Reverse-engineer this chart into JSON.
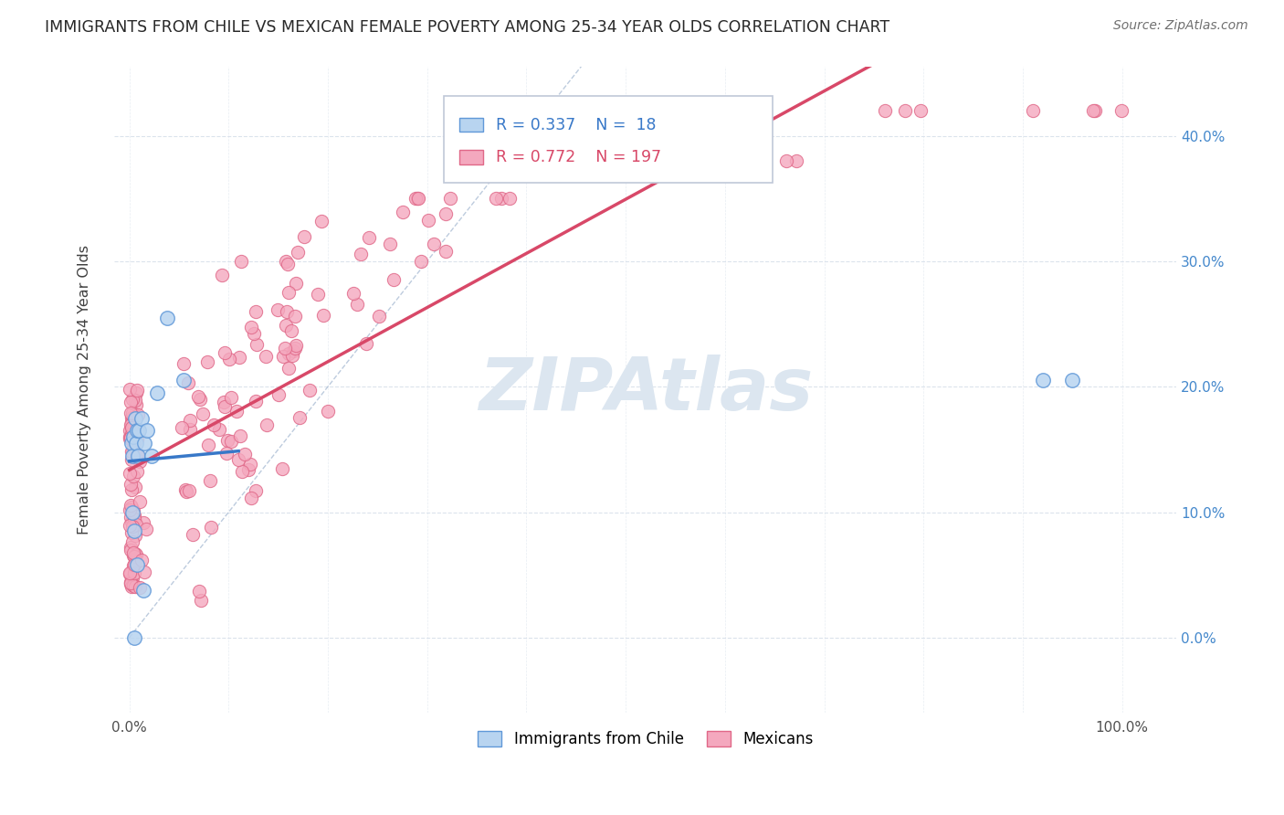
{
  "title": "IMMIGRANTS FROM CHILE VS MEXICAN FEMALE POVERTY AMONG 25-34 YEAR OLDS CORRELATION CHART",
  "source": "Source: ZipAtlas.com",
  "ylabel": "Female Poverty Among 25-34 Year Olds",
  "legend_blue_label": "Immigrants from Chile",
  "legend_pink_label": "Mexicans",
  "r_blue": "0.337",
  "n_blue": "18",
  "r_pink": "0.772",
  "n_pink": "197",
  "blue_face_color": "#b8d4f0",
  "blue_edge_color": "#6098d8",
  "pink_face_color": "#f4a8be",
  "pink_edge_color": "#e06888",
  "blue_line_color": "#3878c8",
  "pink_line_color": "#d84868",
  "diag_line_color": "#9ab0cc",
  "grid_color": "#d8e0ea",
  "background_color": "#ffffff",
  "watermark": "ZIPAtlas",
  "watermark_color": "#dce6f0",
  "figsize": [
    14.06,
    8.92
  ],
  "dpi": 100
}
